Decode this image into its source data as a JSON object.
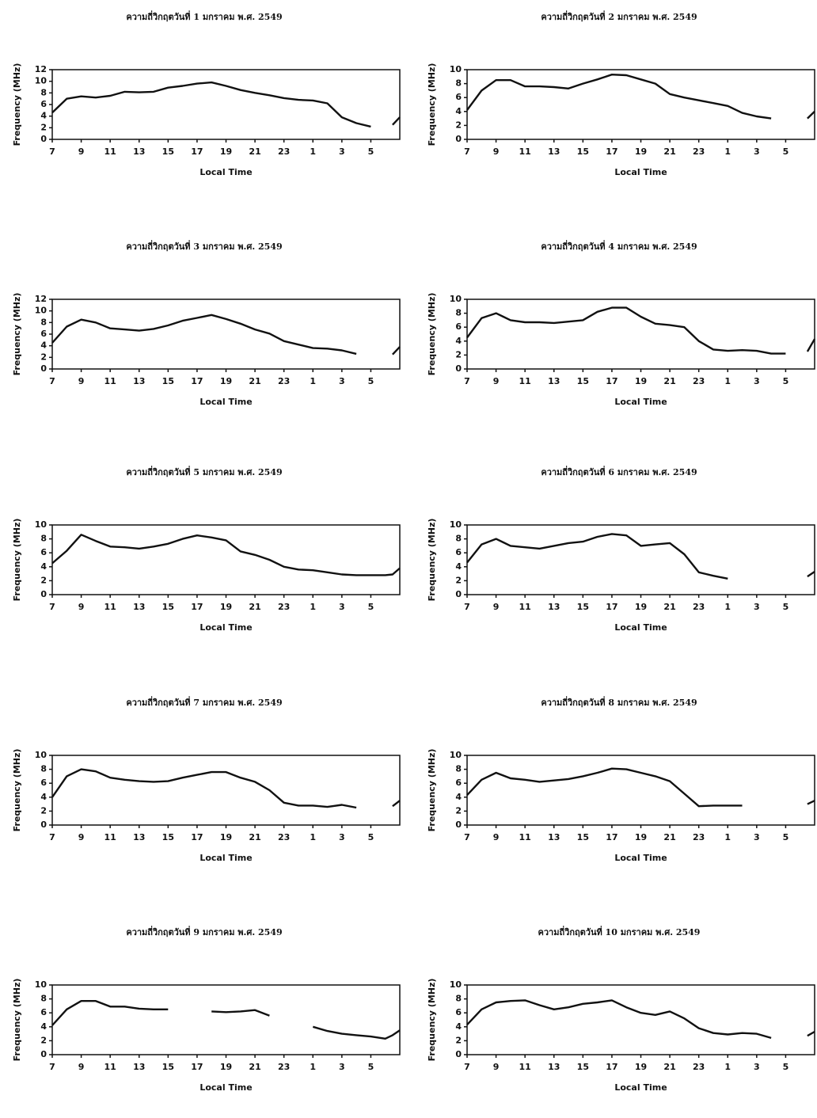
{
  "chart_data": [
    {
      "type": "line",
      "title": "ความถี่วิกฤตวันที่ 1 มกราคม พ.ศ. 2549",
      "x_label": "Local Time",
      "y_label": "Frequency (MHz)",
      "xlim": [
        7,
        31
      ],
      "ylim": [
        0,
        12
      ],
      "xticks": [
        7,
        9,
        11,
        13,
        15,
        17,
        19,
        21,
        23,
        {
          "value": 25,
          "label": "1"
        },
        {
          "value": 27,
          "label": "3"
        },
        {
          "value": 29,
          "label": "5"
        }
      ],
      "yticks": [
        0,
        2,
        4,
        6,
        8,
        10,
        12
      ],
      "x": [
        7,
        8,
        9,
        10,
        11,
        12,
        13,
        14,
        15,
        16,
        17,
        18,
        19,
        20,
        21,
        22,
        23,
        24,
        25,
        26,
        27,
        28,
        29,
        30,
        30.5,
        31
      ],
      "series": [
        {
          "color": "#111111",
          "values": [
            4.6,
            7.0,
            7.4,
            7.2,
            7.5,
            8.2,
            8.1,
            8.2,
            8.9,
            9.2,
            9.6,
            9.8,
            9.2,
            8.5,
            8.0,
            7.6,
            7.1,
            6.8,
            6.7,
            6.2,
            3.8,
            2.8,
            2.2,
            null,
            2.5,
            3.8
          ]
        }
      ]
    },
    {
      "type": "line",
      "title": "ความถี่วิกฤตวันที่ 2 มกราคม พ.ศ. 2549",
      "x_label": "Local Time",
      "y_label": "Frequency (MHz)",
      "xlim": [
        7,
        31
      ],
      "ylim": [
        0,
        10
      ],
      "xticks": [
        7,
        9,
        11,
        13,
        15,
        17,
        19,
        21,
        23,
        {
          "value": 25,
          "label": "1"
        },
        {
          "value": 27,
          "label": "3"
        },
        {
          "value": 29,
          "label": "5"
        }
      ],
      "yticks": [
        0,
        2,
        4,
        6,
        8,
        10
      ],
      "x": [
        7,
        8,
        9,
        10,
        11,
        12,
        13,
        14,
        15,
        16,
        17,
        18,
        19,
        20,
        21,
        22,
        23,
        24,
        25,
        26,
        27,
        28,
        29,
        30,
        30.5,
        31
      ],
      "series": [
        {
          "color": "#111111",
          "values": [
            4.2,
            7.0,
            8.5,
            8.5,
            7.6,
            7.6,
            7.5,
            7.3,
            8.0,
            8.6,
            9.3,
            9.2,
            8.6,
            8.0,
            6.5,
            6.0,
            5.6,
            5.2,
            4.8,
            3.8,
            3.3,
            3.0,
            null,
            null,
            3.0,
            4.0
          ]
        }
      ]
    },
    {
      "type": "line",
      "title": "ความถี่วิกฤตวันที่ 3 มกราคม พ.ศ. 2549",
      "x_label": "Local Time",
      "y_label": "Frequency (MHz)",
      "xlim": [
        7,
        31
      ],
      "ylim": [
        0,
        12
      ],
      "xticks": [
        7,
        9,
        11,
        13,
        15,
        17,
        19,
        21,
        23,
        {
          "value": 25,
          "label": "1"
        },
        {
          "value": 27,
          "label": "3"
        },
        {
          "value": 29,
          "label": "5"
        }
      ],
      "yticks": [
        0,
        2,
        4,
        6,
        8,
        10,
        12
      ],
      "x": [
        7,
        8,
        9,
        10,
        11,
        12,
        13,
        14,
        15,
        16,
        17,
        18,
        19,
        20,
        21,
        22,
        23,
        24,
        25,
        26,
        27,
        28,
        29,
        30,
        30.5,
        31
      ],
      "series": [
        {
          "color": "#111111",
          "values": [
            4.5,
            7.3,
            8.5,
            8.0,
            7.0,
            6.8,
            6.6,
            6.9,
            7.5,
            8.3,
            8.8,
            9.3,
            8.6,
            7.8,
            6.8,
            6.1,
            4.8,
            4.2,
            3.6,
            3.5,
            3.2,
            2.6,
            null,
            null,
            2.5,
            3.8
          ]
        }
      ]
    },
    {
      "type": "line",
      "title": "ความถี่วิกฤตวันที่ 4 มกราคม พ.ศ. 2549",
      "x_label": "Local Time",
      "y_label": "Frequency (MHz)",
      "xlim": [
        7,
        31
      ],
      "ylim": [
        0,
        10
      ],
      "xticks": [
        7,
        9,
        11,
        13,
        15,
        17,
        19,
        21,
        23,
        {
          "value": 25,
          "label": "1"
        },
        {
          "value": 27,
          "label": "3"
        },
        {
          "value": 29,
          "label": "5"
        }
      ],
      "yticks": [
        0,
        2,
        4,
        6,
        8,
        10
      ],
      "x": [
        7,
        8,
        9,
        10,
        11,
        12,
        13,
        14,
        15,
        16,
        17,
        18,
        19,
        20,
        21,
        22,
        23,
        24,
        25,
        26,
        27,
        28,
        29,
        30,
        30.5,
        31
      ],
      "series": [
        {
          "color": "#111111",
          "values": [
            4.5,
            7.3,
            8.0,
            7.0,
            6.7,
            6.7,
            6.6,
            6.8,
            7.0,
            8.2,
            8.8,
            8.8,
            7.5,
            6.5,
            6.3,
            6.0,
            4.0,
            2.8,
            2.6,
            2.7,
            2.6,
            2.2,
            2.2,
            null,
            2.5,
            4.3
          ]
        }
      ]
    },
    {
      "type": "line",
      "title": "ความถี่วิกฤตวันที่ 5 มกราคม พ.ศ. 2549",
      "x_label": "Local Time",
      "y_label": "Frequency (MHz)",
      "xlim": [
        7,
        31
      ],
      "ylim": [
        0,
        10
      ],
      "xticks": [
        7,
        9,
        11,
        13,
        15,
        17,
        19,
        21,
        23,
        {
          "value": 25,
          "label": "1"
        },
        {
          "value": 27,
          "label": "3"
        },
        {
          "value": 29,
          "label": "5"
        }
      ],
      "yticks": [
        0,
        2,
        4,
        6,
        8,
        10
      ],
      "x": [
        7,
        8,
        9,
        10,
        11,
        12,
        13,
        14,
        15,
        16,
        17,
        18,
        19,
        20,
        21,
        22,
        23,
        24,
        25,
        26,
        27,
        28,
        29,
        30,
        30.5,
        31
      ],
      "series": [
        {
          "color": "#111111",
          "values": [
            4.5,
            6.3,
            8.6,
            7.7,
            6.9,
            6.8,
            6.6,
            6.9,
            7.3,
            8.0,
            8.5,
            8.2,
            7.8,
            6.2,
            5.7,
            5.0,
            4.0,
            3.6,
            3.5,
            3.2,
            2.9,
            2.8,
            2.8,
            2.8,
            2.9,
            3.8
          ]
        }
      ]
    },
    {
      "type": "line",
      "title": "ความถี่วิกฤตวันที่ 6 มกราคม พ.ศ. 2549",
      "x_label": "Local Time",
      "y_label": "Frequency (MHz)",
      "xlim": [
        7,
        31
      ],
      "ylim": [
        0,
        10
      ],
      "xticks": [
        7,
        9,
        11,
        13,
        15,
        17,
        19,
        21,
        23,
        {
          "value": 25,
          "label": "1"
        },
        {
          "value": 27,
          "label": "3"
        },
        {
          "value": 29,
          "label": "5"
        }
      ],
      "yticks": [
        0,
        2,
        4,
        6,
        8,
        10
      ],
      "x": [
        7,
        8,
        9,
        10,
        11,
        12,
        13,
        14,
        15,
        16,
        17,
        18,
        19,
        20,
        21,
        22,
        23,
        24,
        25,
        26,
        27,
        28,
        29,
        30,
        30.5,
        31
      ],
      "series": [
        {
          "color": "#111111",
          "values": [
            4.6,
            7.2,
            8.0,
            7.0,
            6.8,
            6.6,
            7.0,
            7.4,
            7.6,
            8.3,
            8.7,
            8.5,
            7.0,
            7.2,
            7.4,
            5.8,
            3.2,
            2.7,
            2.3,
            null,
            null,
            null,
            null,
            null,
            2.6,
            3.3
          ]
        }
      ]
    },
    {
      "type": "line",
      "title": "ความถี่วิกฤตวันที่ 7 มกราคม พ.ศ. 2549",
      "x_label": "Local Time",
      "y_label": "Frequency (MHz)",
      "xlim": [
        7,
        31
      ],
      "ylim": [
        0,
        10
      ],
      "xticks": [
        7,
        9,
        11,
        13,
        15,
        17,
        19,
        21,
        23,
        {
          "value": 25,
          "label": "1"
        },
        {
          "value": 27,
          "label": "3"
        },
        {
          "value": 29,
          "label": "5"
        }
      ],
      "yticks": [
        0,
        2,
        4,
        6,
        8,
        10
      ],
      "x": [
        7,
        8,
        9,
        10,
        11,
        12,
        13,
        14,
        15,
        16,
        17,
        18,
        19,
        20,
        21,
        22,
        23,
        24,
        25,
        26,
        27,
        28,
        29,
        30,
        30.5,
        31
      ],
      "series": [
        {
          "color": "#111111",
          "values": [
            4.0,
            7.0,
            8.0,
            7.7,
            6.8,
            6.5,
            6.3,
            6.2,
            6.3,
            6.8,
            7.2,
            7.6,
            7.6,
            6.8,
            6.2,
            5.0,
            3.2,
            2.8,
            2.8,
            2.6,
            2.9,
            2.5,
            null,
            null,
            2.7,
            3.5
          ]
        }
      ]
    },
    {
      "type": "line",
      "title": "ความถี่วิกฤตวันที่ 8 มกราคม พ.ศ. 2549",
      "x_label": "Local Time",
      "y_label": "Frequency (MHz)",
      "xlim": [
        7,
        31
      ],
      "ylim": [
        0,
        10
      ],
      "xticks": [
        7,
        9,
        11,
        13,
        15,
        17,
        19,
        21,
        23,
        {
          "value": 25,
          "label": "1"
        },
        {
          "value": 27,
          "label": "3"
        },
        {
          "value": 29,
          "label": "5"
        }
      ],
      "yticks": [
        0,
        2,
        4,
        6,
        8,
        10
      ],
      "x": [
        7,
        8,
        9,
        10,
        11,
        12,
        13,
        14,
        15,
        16,
        17,
        18,
        19,
        20,
        21,
        22,
        23,
        24,
        25,
        26,
        27,
        28,
        29,
        30,
        30.5,
        31
      ],
      "series": [
        {
          "color": "#111111",
          "values": [
            4.3,
            6.5,
            7.5,
            6.7,
            6.5,
            6.2,
            6.4,
            6.6,
            7.0,
            7.5,
            8.1,
            8.0,
            7.5,
            7.0,
            6.3,
            4.5,
            2.7,
            2.8,
            2.8,
            2.8,
            null,
            null,
            null,
            null,
            3.0,
            3.5
          ]
        }
      ]
    },
    {
      "type": "line",
      "title": "ความถี่วิกฤตวันที่ 9 มกราคม พ.ศ. 2549",
      "x_label": "Local Time",
      "y_label": "Frequency (MHz)",
      "xlim": [
        7,
        31
      ],
      "ylim": [
        0,
        10
      ],
      "xticks": [
        7,
        9,
        11,
        13,
        15,
        17,
        19,
        21,
        23,
        {
          "value": 25,
          "label": "1"
        },
        {
          "value": 27,
          "label": "3"
        },
        {
          "value": 29,
          "label": "5"
        }
      ],
      "yticks": [
        0,
        2,
        4,
        6,
        8,
        10
      ],
      "x": [
        7,
        8,
        9,
        10,
        11,
        12,
        13,
        14,
        15,
        16,
        17,
        18,
        19,
        20,
        21,
        22,
        23,
        24,
        25,
        26,
        27,
        28,
        29,
        30,
        30.5,
        31
      ],
      "series": [
        {
          "color": "#111111",
          "values": [
            4.2,
            6.5,
            7.7,
            7.7,
            6.9,
            6.9,
            6.6,
            6.5,
            6.5,
            null,
            null,
            6.2,
            6.1,
            6.2,
            6.4,
            5.6,
            null,
            null,
            4.0,
            3.4,
            3.0,
            2.8,
            2.6,
            2.3,
            2.8,
            3.5
          ]
        }
      ]
    },
    {
      "type": "line",
      "title": "ความถี่วิกฤตวันที่ 10 มกราคม พ.ศ. 2549",
      "x_label": "Local Time",
      "y_label": "Frequency (MHz)",
      "xlim": [
        7,
        31
      ],
      "ylim": [
        0,
        10
      ],
      "xticks": [
        7,
        9,
        11,
        13,
        15,
        17,
        19,
        21,
        23,
        {
          "value": 25,
          "label": "1"
        },
        {
          "value": 27,
          "label": "3"
        },
        {
          "value": 29,
          "label": "5"
        }
      ],
      "yticks": [
        0,
        2,
        4,
        6,
        8,
        10
      ],
      "x": [
        7,
        8,
        9,
        10,
        11,
        12,
        13,
        14,
        15,
        16,
        17,
        18,
        19,
        20,
        21,
        22,
        23,
        24,
        25,
        26,
        27,
        28,
        29,
        30,
        30.5,
        31
      ],
      "series": [
        {
          "color": "#111111",
          "values": [
            4.3,
            6.5,
            7.5,
            7.7,
            7.8,
            7.1,
            6.5,
            6.8,
            7.3,
            7.5,
            7.8,
            6.8,
            6.0,
            5.7,
            6.2,
            5.2,
            3.8,
            3.1,
            2.9,
            3.1,
            3.0,
            2.4,
            null,
            null,
            2.7,
            3.3
          ]
        }
      ]
    }
  ]
}
